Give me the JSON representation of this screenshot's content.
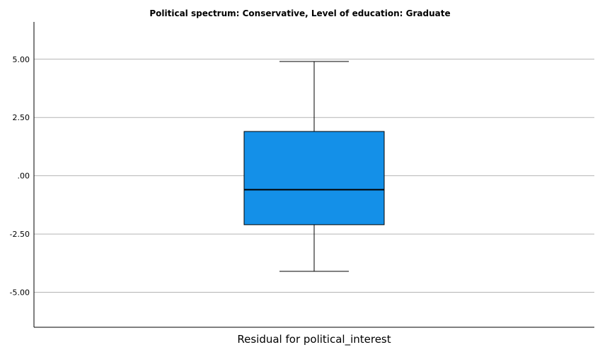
{
  "chart_data": {
    "type": "boxplot",
    "title": "Political spectrum: Conservative, Level of education: Graduate",
    "xlabel": "Residual for political_interest",
    "ylabel": "",
    "ylim": [
      -6.5,
      6.6
    ],
    "yticks": [
      5.0,
      2.5,
      0.0,
      -2.5,
      -5.0
    ],
    "ytick_labels": [
      "5.00",
      "2.50",
      ".00",
      "-2.50",
      "-5.00"
    ],
    "grid": true,
    "box": {
      "whisker_high": 4.9,
      "q3": 1.9,
      "median": -0.6,
      "q1": -2.1,
      "whisker_low": -4.1
    },
    "colors": {
      "box_fill": "#1490e8",
      "gridline": "#b4b4b4"
    }
  }
}
